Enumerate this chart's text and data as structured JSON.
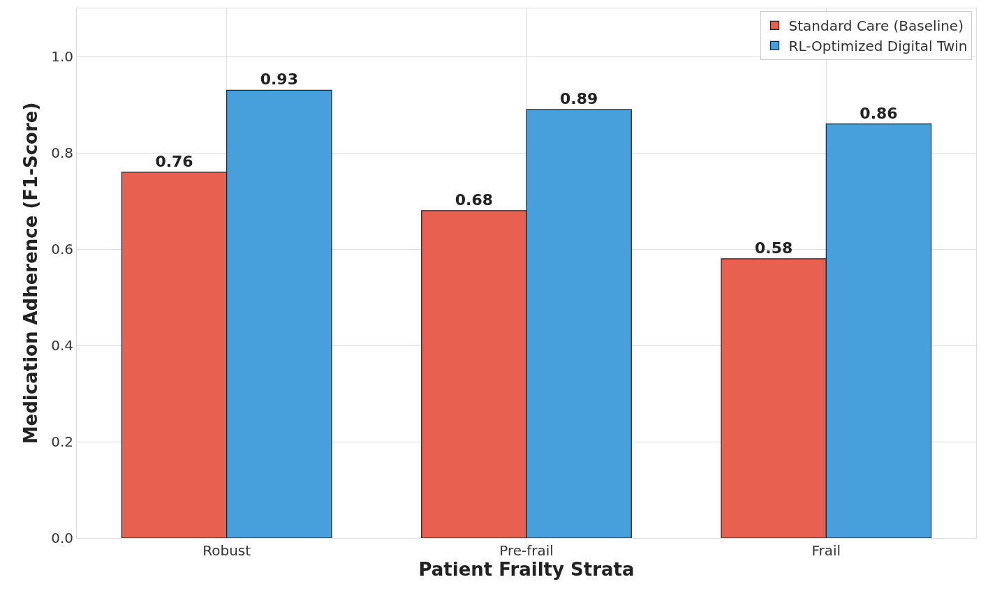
{
  "chart_data": {
    "type": "bar",
    "xlabel": "Patient Frailty Strata",
    "ylabel": "Medication Adherence (F1-Score)",
    "categories": [
      "Robust",
      "Pre-frail",
      "Frail"
    ],
    "series": [
      {
        "name": "Standard Care (Baseline)",
        "color": "#e8604f",
        "values": [
          0.76,
          0.68,
          0.58
        ]
      },
      {
        "name": "RL-Optimized Digital Twin",
        "color": "#47a0dc",
        "values": [
          0.93,
          0.89,
          0.86
        ]
      }
    ],
    "ylim": [
      0,
      1.1
    ],
    "yticks": [
      {
        "value": 0,
        "label": "0.0"
      },
      0.2,
      0.4,
      0.6,
      0.8,
      {
        "value": 1,
        "label": "1.0"
      }
    ],
    "grid": true,
    "legend": "top right",
    "data_labels": true
  }
}
